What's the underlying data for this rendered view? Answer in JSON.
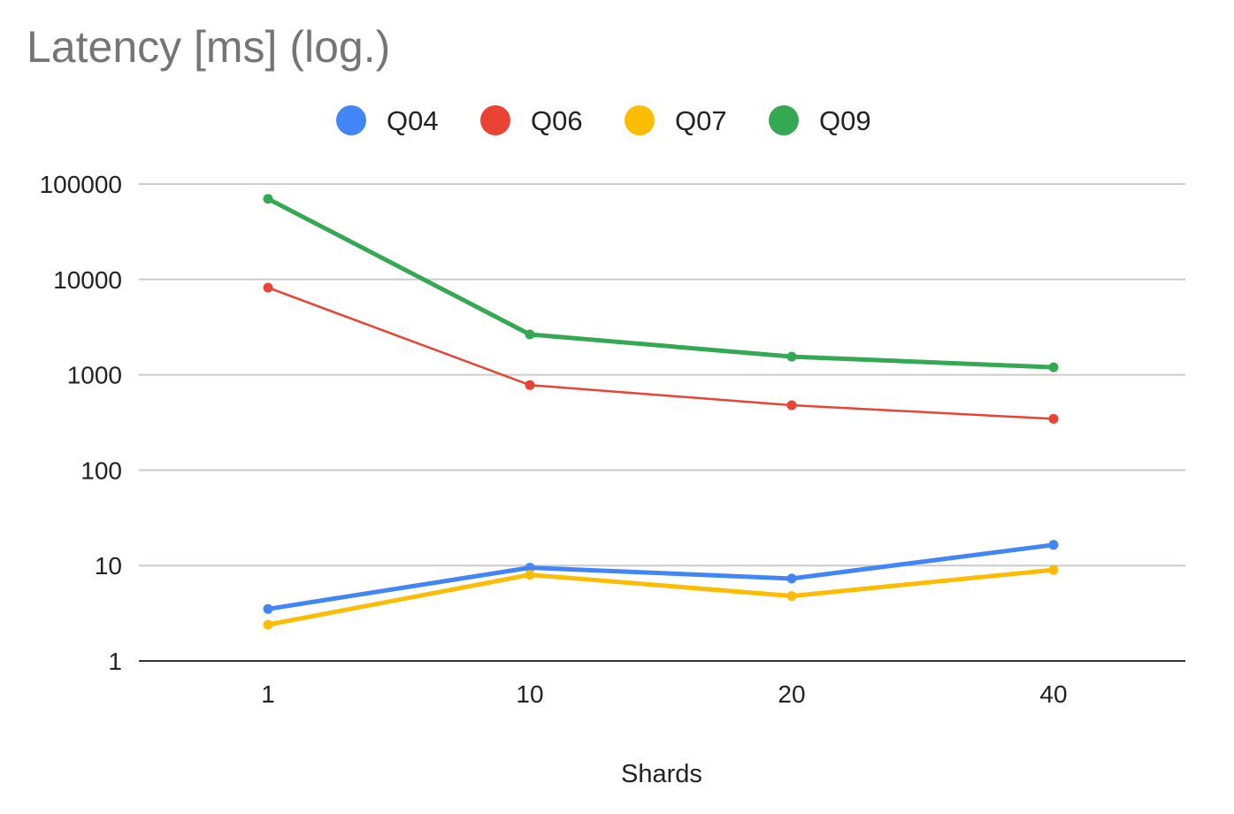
{
  "chart_data": {
    "type": "line",
    "title": "Latency [ms] (log.)",
    "xlabel": "Shards",
    "ylabel": "",
    "y_scale": "log",
    "ylim": [
      1,
      100000
    ],
    "y_ticks": [
      "100000",
      "10000",
      "1000",
      "100",
      "10",
      "1"
    ],
    "categories": [
      "1",
      "10",
      "20",
      "40"
    ],
    "legend_position": "top",
    "grid": true,
    "series": [
      {
        "name": "Q04",
        "color": "#4285f4",
        "values": [
          3.5,
          9.5,
          7.3,
          16.5
        ]
      },
      {
        "name": "Q06",
        "color": "#ea4335",
        "values": [
          8200,
          780,
          480,
          345
        ]
      },
      {
        "name": "Q07",
        "color": "#fbbc04",
        "values": [
          2.4,
          8,
          4.8,
          9
        ]
      },
      {
        "name": "Q09",
        "color": "#34a853",
        "values": [
          70000,
          2650,
          1550,
          1200
        ]
      }
    ]
  }
}
